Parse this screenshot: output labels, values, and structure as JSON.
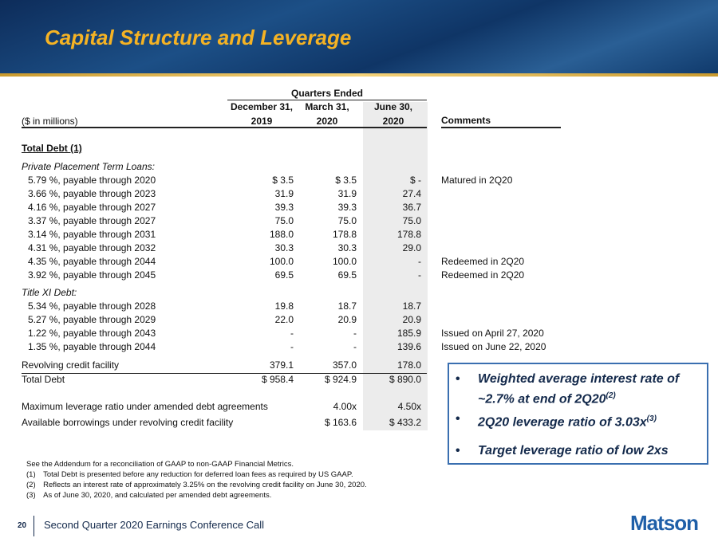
{
  "header": {
    "title": "Capital Structure and Leverage"
  },
  "table": {
    "group_header": "Quarters Ended",
    "unit_label": "($ in millions)",
    "columns": [
      {
        "line1": "December 31,",
        "line2": "2019"
      },
      {
        "line1": "March 31,",
        "line2": "2020"
      },
      {
        "line1": "June 30,",
        "line2": "2020"
      }
    ],
    "comments_header": "Comments",
    "rows": [
      {
        "label": "Total Debt (1)",
        "style": "heading"
      },
      {
        "label": "Private Placement Term Loans:",
        "style": "subheading"
      },
      {
        "label": "5.79 %, payable through 2020",
        "dec": "$ 3.5",
        "mar": "$ 3.5",
        "jun": "$ -",
        "comment": "Matured in 2Q20"
      },
      {
        "label": "3.66 %, payable through 2023",
        "dec": "31.9",
        "mar": "31.9",
        "jun": "27.4"
      },
      {
        "label": "4.16 %, payable through 2027",
        "dec": "39.3",
        "mar": "39.3",
        "jun": "36.7"
      },
      {
        "label": "3.37 %, payable through 2027",
        "dec": "75.0",
        "mar": "75.0",
        "jun": "75.0"
      },
      {
        "label": "3.14 %, payable through 2031",
        "dec": "188.0",
        "mar": "178.8",
        "jun": "178.8"
      },
      {
        "label": "4.31 %, payable through 2032",
        "dec": "30.3",
        "mar": "30.3",
        "jun": "29.0"
      },
      {
        "label": "4.35 %, payable through 2044",
        "dec": "100.0",
        "mar": "100.0",
        "jun": "-",
        "comment": "Redeemed in 2Q20"
      },
      {
        "label": "3.92 %, payable through 2045",
        "dec": "69.5",
        "mar": "69.5",
        "jun": "-",
        "comment": "Redeemed in 2Q20"
      },
      {
        "label": "Title XI Debt:",
        "style": "subheading"
      },
      {
        "label": "5.34 %, payable through 2028",
        "dec": "19.8",
        "mar": "18.7",
        "jun": "18.7"
      },
      {
        "label": "5.27 %, payable through 2029",
        "dec": "22.0",
        "mar": "20.9",
        "jun": "20.9"
      },
      {
        "label": "1.22 %, payable through 2043",
        "dec": "-",
        "mar": "-",
        "jun": "185.9",
        "comment": "Issued on April 27, 2020"
      },
      {
        "label": "1.35 %, payable through 2044",
        "dec": "-",
        "mar": "-",
        "jun": "139.6",
        "comment": "Issued on June 22, 2020"
      },
      {
        "label": "Revolving credit facility",
        "dec": "379.1",
        "mar": "357.0",
        "jun": "178.0",
        "style": "plain"
      },
      {
        "label": "Total Debt",
        "dec": "$ 958.4",
        "mar": "$ 924.9",
        "jun": "$ 890.0",
        "style": "total"
      },
      {
        "label": "Maximum leverage ratio under amended debt agreements",
        "mar": "4.00x",
        "jun": "4.50x",
        "style": "plain"
      },
      {
        "label": "Available borrowings under revolving credit facility",
        "mar": "$ 163.6",
        "jun": "$ 433.2",
        "style": "plain"
      }
    ]
  },
  "footnotes": [
    "See the Addendum for a reconciliation of GAAP to non-GAAP Financial Metrics.",
    "(1) Total Debt is presented before any reduction for deferred loan fees as required by US GAAP.",
    "(2) Reflects an interest rate of approximately 3.25% on the revolving credit facility on June 30, 2020.",
    "(3) As of June 30, 2020, and calculated per amended debt agreements."
  ],
  "bullets": [
    {
      "text": "Weighted average interest rate of ~2.7% at end of 2Q20",
      "note": "(2)"
    },
    {
      "text": "2Q20 leverage ratio of 3.03x",
      "note": "(3)"
    },
    {
      "text": "Target leverage ratio of low 2xs"
    }
  ],
  "footer": {
    "page": "20",
    "text": "Second Quarter 2020 Earnings Conference Call",
    "logo": "Matson"
  }
}
